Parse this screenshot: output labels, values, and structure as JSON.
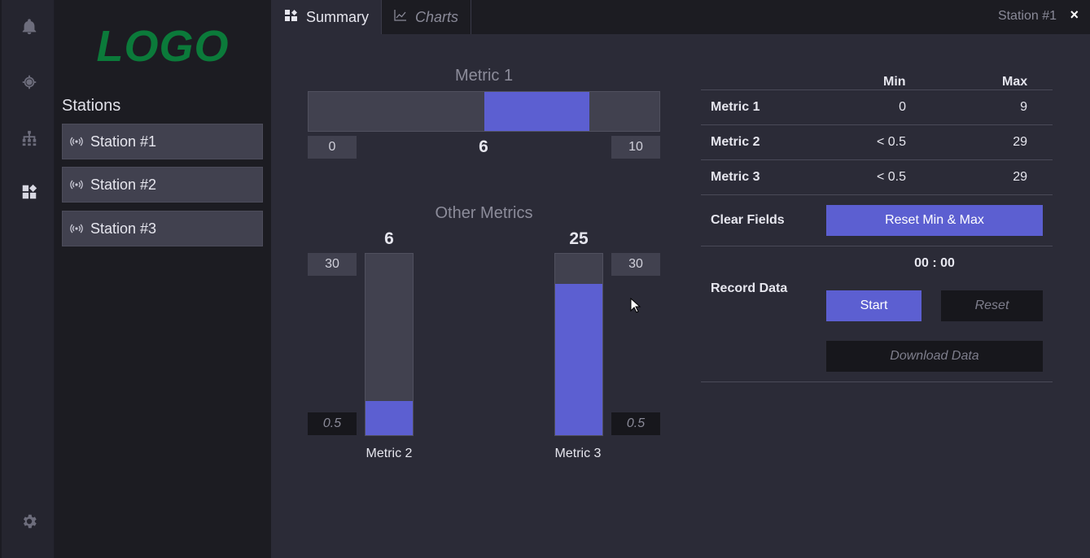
{
  "rail": {
    "icons": [
      "bell-icon",
      "target-icon",
      "sitemap-icon",
      "dashboard-icon",
      "gear-icon"
    ],
    "active": "dashboard-icon"
  },
  "sidebar": {
    "logo": "LOGO",
    "title": "Stations",
    "stations": [
      {
        "label": "Station #1",
        "icon": "broadcast-icon"
      },
      {
        "label": "Station #2",
        "icon": "broadcast-icon"
      },
      {
        "label": "Station #3",
        "icon": "broadcast-icon"
      }
    ]
  },
  "tabs": {
    "items": [
      {
        "label": "Summary",
        "icon": "dashboard-icon",
        "active": true
      },
      {
        "label": "Charts",
        "icon": "line-chart-icon",
        "active": false
      }
    ],
    "station": "Station #1",
    "close": "×"
  },
  "metric1": {
    "title": "Metric 1",
    "min_label": "0",
    "max_label": "10",
    "value": "6",
    "range_start": 5,
    "range_end": 8,
    "scale_min": 0,
    "scale_max": 10
  },
  "other_metrics": {
    "title": "Other Metrics",
    "metric2": {
      "label": "Metric 2",
      "value": "6",
      "fill_fraction": 0.19,
      "max_label": "30",
      "min_label": "0.5"
    },
    "metric3": {
      "label": "Metric 3",
      "value": "25",
      "fill_fraction": 0.835,
      "max_label": "30",
      "min_label": "0.5"
    }
  },
  "table": {
    "col_min": "Min",
    "col_max": "Max",
    "rows": [
      {
        "label": "Metric 1",
        "min": "0",
        "max": "9"
      },
      {
        "label": "Metric 2",
        "min": "< 0.5",
        "max": "29"
      },
      {
        "label": "Metric 3",
        "min": "< 0.5",
        "max": "29"
      }
    ],
    "clear_fields_label": "Clear Fields",
    "reset_minmax_label": "Reset Min & Max",
    "record_data_label": "Record Data",
    "timer": "00 : 00",
    "start_label": "Start",
    "reset_label": "Reset",
    "download_label": "Download Data"
  },
  "colors": {
    "accent": "#5c5fd1",
    "logo": "#0b7a3a",
    "background": "#2b2b37"
  }
}
